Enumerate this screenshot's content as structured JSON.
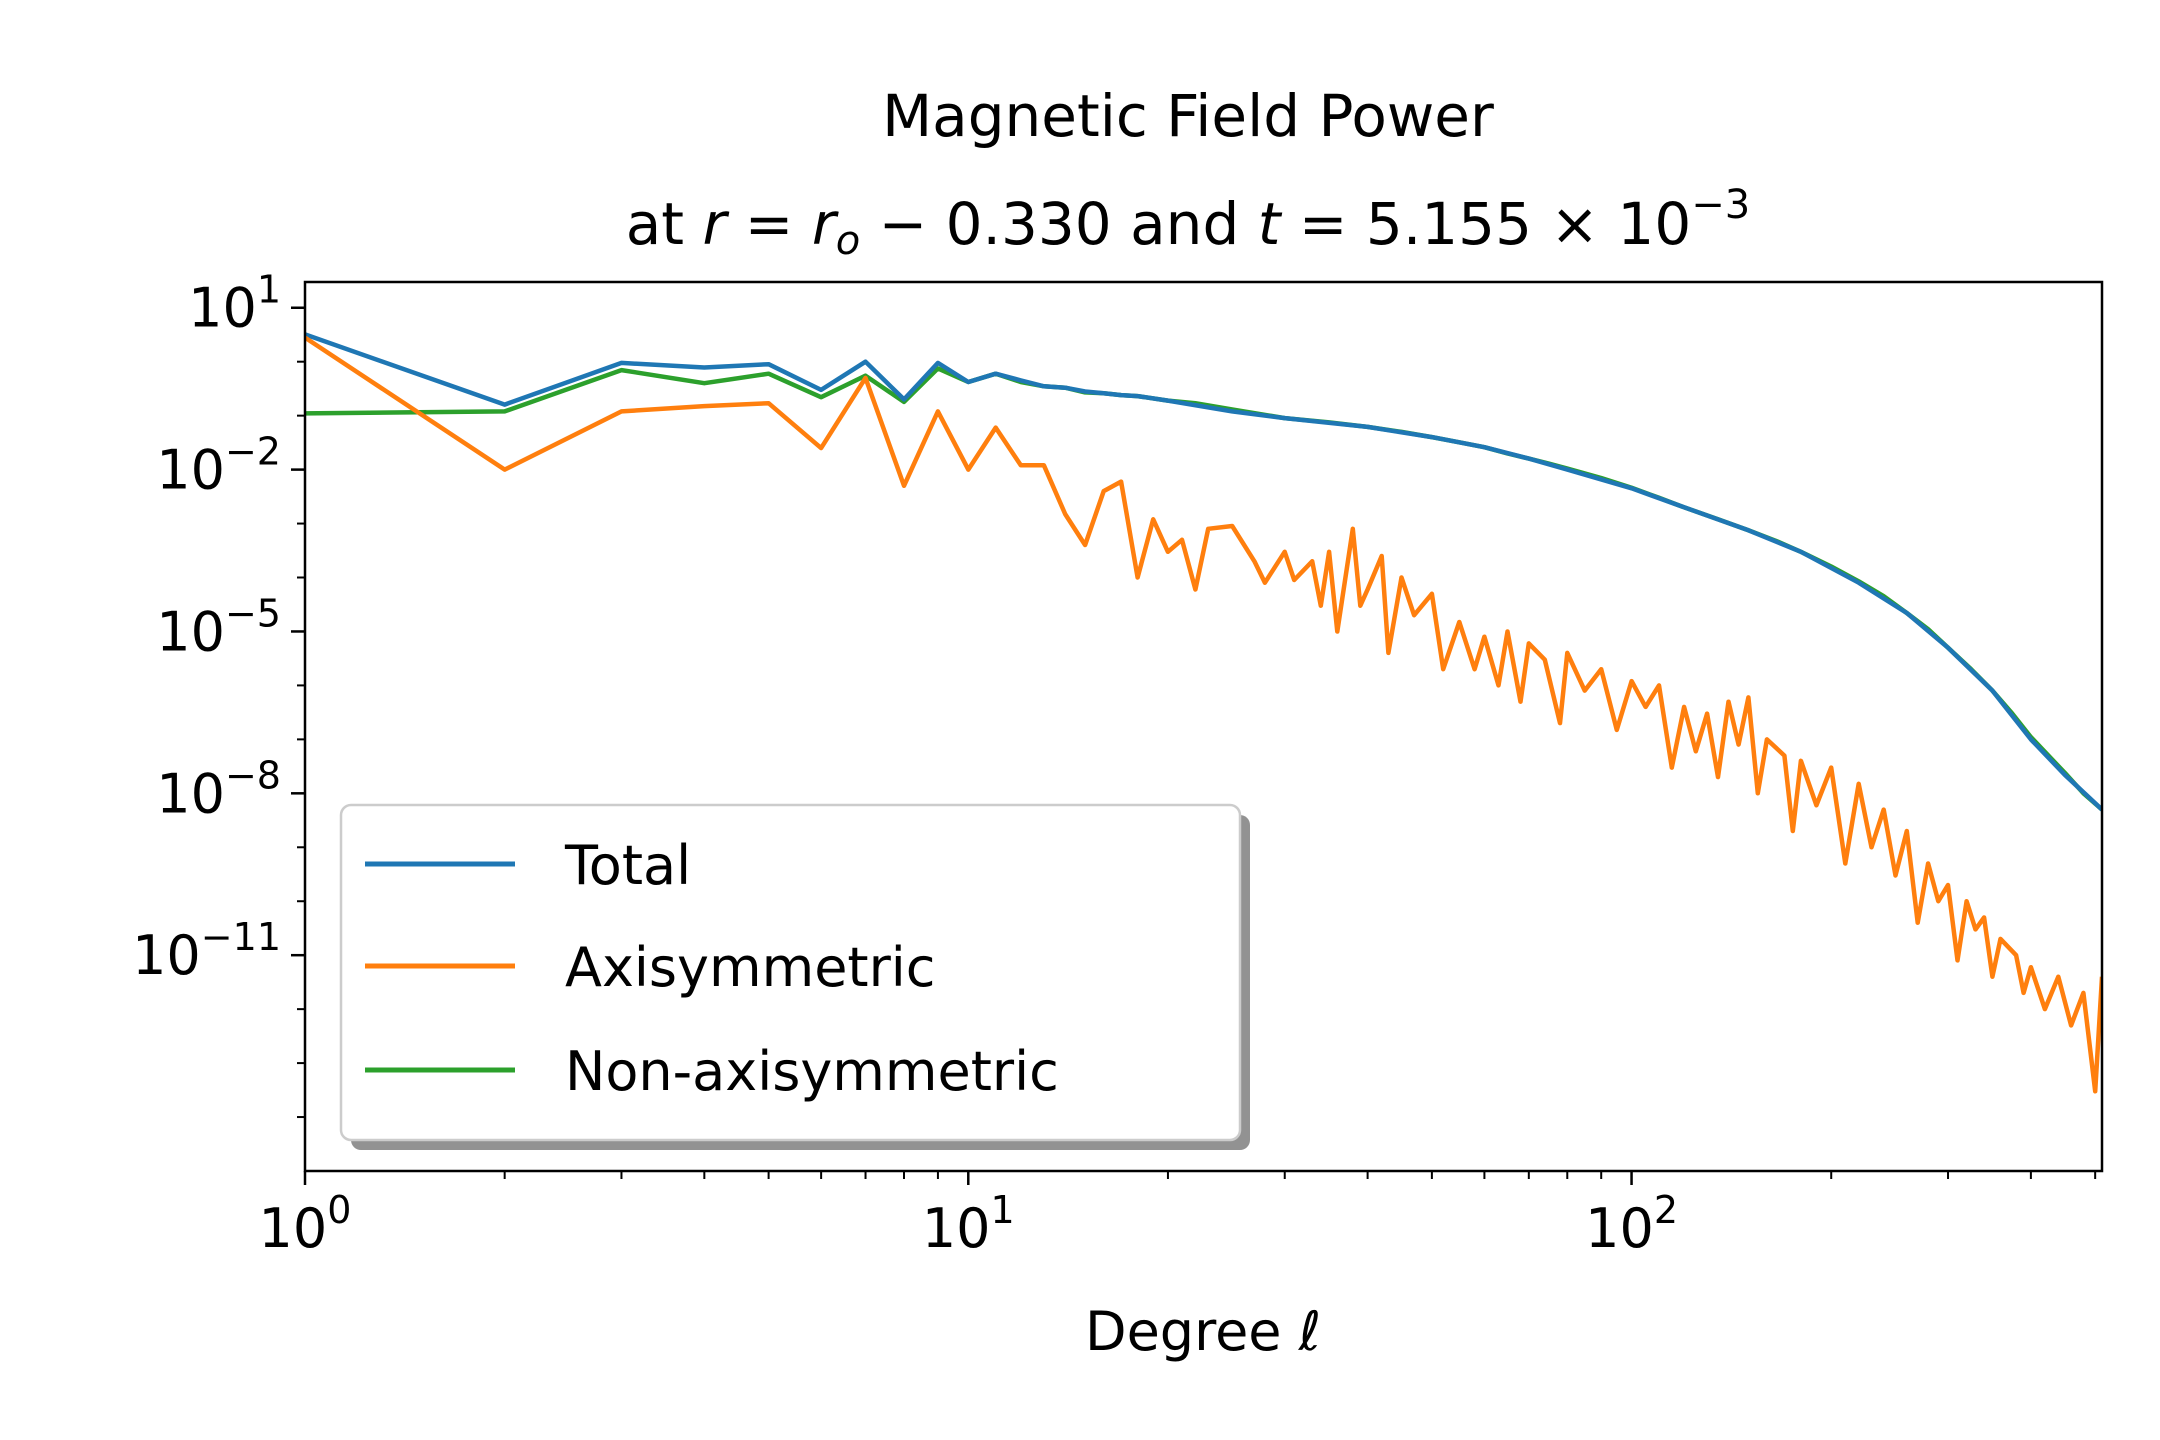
{
  "chart_data": {
    "type": "line",
    "title_line1": "Magnetic Field Power",
    "title_line2": {
      "prefix": "at ",
      "r_var": "r",
      "eq": " = ",
      "ro_base": "r",
      "ro_sub": "o",
      "minus": " −  0.330 and ",
      "t_var": "t",
      "t_value": " = 5.155 × 10",
      "t_exp": "−3"
    },
    "xlabel": "Degree",
    "xlabel_symbol": "ℓ",
    "xscale": "log",
    "yscale": "log",
    "xlim": [
      1,
      512
    ],
    "ylim": [
      1e-15,
      30
    ],
    "grid": false,
    "legend_position": "lower-left",
    "x_ticks": [
      {
        "value": 1,
        "base": "10",
        "exp": "0"
      },
      {
        "value": 10,
        "base": "10",
        "exp": "1"
      },
      {
        "value": 100,
        "base": "10",
        "exp": "2"
      }
    ],
    "y_ticks": [
      {
        "value": 10,
        "base": "10",
        "exp": "1"
      },
      {
        "value": 0.01,
        "base": "10",
        "exp": "−2"
      },
      {
        "value": 1e-05,
        "base": "10",
        "exp": "−5"
      },
      {
        "value": 1e-08,
        "base": "10",
        "exp": "−8"
      },
      {
        "value": 1e-11,
        "base": "10",
        "exp": "−11"
      }
    ],
    "series": [
      {
        "name": "Total",
        "color": "#1f77b4",
        "points": [
          [
            1,
            3.2
          ],
          [
            2,
            0.16
          ],
          [
            3,
            0.95
          ],
          [
            4,
            0.78
          ],
          [
            5,
            0.9
          ],
          [
            6,
            0.3
          ],
          [
            7,
            1.0
          ],
          [
            8,
            0.2
          ],
          [
            9,
            0.95
          ],
          [
            10,
            0.42
          ],
          [
            11,
            0.6
          ],
          [
            12,
            0.45
          ],
          [
            13,
            0.35
          ],
          [
            14,
            0.33
          ],
          [
            15,
            0.28
          ],
          [
            16,
            0.26
          ],
          [
            17,
            0.24
          ],
          [
            18,
            0.23
          ],
          [
            20,
            0.19
          ],
          [
            25,
            0.12
          ],
          [
            30,
            0.09
          ],
          [
            40,
            0.062
          ],
          [
            50,
            0.04
          ],
          [
            60,
            0.026
          ],
          [
            70,
            0.016
          ],
          [
            80,
            0.01
          ],
          [
            100,
            0.0045
          ],
          [
            120,
            0.002
          ],
          [
            150,
            0.00075
          ],
          [
            180,
            0.0003
          ],
          [
            220,
            8e-05
          ],
          [
            260,
            2.2e-05
          ],
          [
            300,
            5e-06
          ],
          [
            350,
            8e-07
          ],
          [
            400,
            1e-07
          ],
          [
            450,
            2.2e-08
          ],
          [
            512,
            5e-09
          ]
        ]
      },
      {
        "name": "Axisymmetric",
        "color": "#ff7f0e",
        "points": [
          [
            1,
            2.8
          ],
          [
            2,
            0.01
          ],
          [
            3,
            0.12
          ],
          [
            4,
            0.15
          ],
          [
            5,
            0.17
          ],
          [
            6,
            0.025
          ],
          [
            7,
            0.5
          ],
          [
            8,
            0.005
          ],
          [
            9,
            0.12
          ],
          [
            10,
            0.01
          ],
          [
            11,
            0.06
          ],
          [
            12,
            0.012
          ],
          [
            13,
            0.012
          ],
          [
            14,
            0.0015
          ],
          [
            15,
            0.0004
          ],
          [
            16,
            0.004
          ],
          [
            17,
            0.006
          ],
          [
            18,
            0.0001
          ],
          [
            19,
            0.0012
          ],
          [
            20,
            0.0003
          ],
          [
            21,
            0.0005
          ],
          [
            22,
            6e-05
          ],
          [
            23,
            0.0008
          ],
          [
            25,
            0.0009
          ],
          [
            27,
            0.0002
          ],
          [
            28,
            8e-05
          ],
          [
            30,
            0.0003
          ],
          [
            31,
            9e-05
          ],
          [
            33,
            0.0002
          ],
          [
            34,
            3e-05
          ],
          [
            35,
            0.0003
          ],
          [
            36,
            1e-05
          ],
          [
            38,
            0.0008
          ],
          [
            39,
            3e-05
          ],
          [
            40,
            6e-05
          ],
          [
            42,
            0.00025
          ],
          [
            43,
            4e-06
          ],
          [
            45,
            0.0001
          ],
          [
            47,
            2e-05
          ],
          [
            50,
            5e-05
          ],
          [
            52,
            2e-06
          ],
          [
            55,
            1.5e-05
          ],
          [
            58,
            2e-06
          ],
          [
            60,
            8e-06
          ],
          [
            63,
            1e-06
          ],
          [
            65,
            1e-05
          ],
          [
            68,
            5e-07
          ],
          [
            70,
            6e-06
          ],
          [
            74,
            3e-06
          ],
          [
            78,
            2e-07
          ],
          [
            80,
            4e-06
          ],
          [
            85,
            8e-07
          ],
          [
            90,
            2e-06
          ],
          [
            95,
            1.5e-07
          ],
          [
            100,
            1.2e-06
          ],
          [
            105,
            4e-07
          ],
          [
            110,
            1e-06
          ],
          [
            115,
            3e-08
          ],
          [
            120,
            4e-07
          ],
          [
            125,
            6e-08
          ],
          [
            130,
            3e-07
          ],
          [
            135,
            2e-08
          ],
          [
            140,
            5e-07
          ],
          [
            145,
            8e-08
          ],
          [
            150,
            6e-07
          ],
          [
            155,
            1e-08
          ],
          [
            160,
            1e-07
          ],
          [
            170,
            5e-08
          ],
          [
            175,
            2e-09
          ],
          [
            180,
            4e-08
          ],
          [
            190,
            6e-09
          ],
          [
            200,
            3e-08
          ],
          [
            210,
            5e-10
          ],
          [
            220,
            1.5e-08
          ],
          [
            230,
            1e-09
          ],
          [
            240,
            5e-09
          ],
          [
            250,
            3e-10
          ],
          [
            260,
            2e-09
          ],
          [
            270,
            4e-11
          ],
          [
            280,
            5e-10
          ],
          [
            290,
            1e-10
          ],
          [
            300,
            2e-10
          ],
          [
            310,
            8e-12
          ],
          [
            320,
            1e-10
          ],
          [
            330,
            3e-11
          ],
          [
            340,
            5e-11
          ],
          [
            350,
            4e-12
          ],
          [
            360,
            2e-11
          ],
          [
            380,
            1e-11
          ],
          [
            390,
            2e-12
          ],
          [
            400,
            6e-12
          ],
          [
            420,
            1e-12
          ],
          [
            440,
            4e-12
          ],
          [
            460,
            5e-13
          ],
          [
            480,
            2e-12
          ],
          [
            500,
            3e-14
          ],
          [
            512,
            4e-12
          ]
        ]
      },
      {
        "name": "Non-axisymmetric",
        "color": "#2ca02c",
        "points": [
          [
            1,
            0.11
          ],
          [
            2,
            0.12
          ],
          [
            3,
            0.7
          ],
          [
            4,
            0.4
          ],
          [
            5,
            0.6
          ],
          [
            6,
            0.22
          ],
          [
            7,
            0.55
          ],
          [
            8,
            0.18
          ],
          [
            9,
            0.75
          ],
          [
            10,
            0.42
          ],
          [
            11,
            0.6
          ],
          [
            12,
            0.42
          ],
          [
            13,
            0.35
          ],
          [
            14,
            0.33
          ],
          [
            15,
            0.27
          ],
          [
            16,
            0.26
          ],
          [
            17,
            0.24
          ],
          [
            18,
            0.23
          ],
          [
            20,
            0.19
          ],
          [
            22,
            0.17
          ],
          [
            25,
            0.13
          ],
          [
            30,
            0.09
          ],
          [
            35,
            0.075
          ],
          [
            40,
            0.062
          ],
          [
            45,
            0.05
          ],
          [
            50,
            0.04
          ],
          [
            55,
            0.032
          ],
          [
            60,
            0.026
          ],
          [
            65,
            0.02
          ],
          [
            70,
            0.016
          ],
          [
            75,
            0.013
          ],
          [
            80,
            0.0105
          ],
          [
            90,
            0.007
          ],
          [
            100,
            0.0046
          ],
          [
            110,
            0.003
          ],
          [
            120,
            0.002
          ],
          [
            135,
            0.0012
          ],
          [
            150,
            0.00075
          ],
          [
            165,
            0.00048
          ],
          [
            180,
            0.0003
          ],
          [
            200,
            0.00016
          ],
          [
            220,
            8.5e-05
          ],
          [
            240,
            4.5e-05
          ],
          [
            260,
            2.2e-05
          ],
          [
            280,
            1.1e-05
          ],
          [
            300,
            5e-06
          ],
          [
            325,
            2e-06
          ],
          [
            350,
            8e-07
          ],
          [
            375,
            3e-07
          ],
          [
            400,
            1.1e-07
          ],
          [
            425,
            5e-08
          ],
          [
            450,
            2.4e-08
          ],
          [
            480,
            1e-08
          ],
          [
            512,
            5e-09
          ]
        ]
      }
    ]
  }
}
